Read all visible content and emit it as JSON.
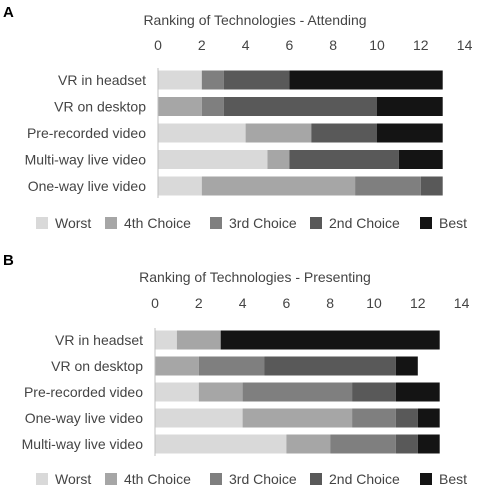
{
  "chart_data": [
    {
      "panel": "A",
      "type": "bar",
      "stacked": true,
      "orientation": "horizontal",
      "title": "Ranking of Technologies - Attending",
      "xlim": [
        0,
        14
      ],
      "xticks": [
        0,
        2,
        4,
        6,
        8,
        10,
        12,
        14
      ],
      "x_axis_position": "top",
      "grid": false,
      "legend_position": "bottom",
      "categories": [
        "VR in headset",
        "VR on desktop",
        "Pre-recorded video",
        "Multi-way live video",
        "One-way live video"
      ],
      "series": [
        {
          "name": "Worst",
          "color": "#d9d9d9",
          "values": [
            2,
            0,
            4,
            5,
            2
          ]
        },
        {
          "name": "4th Choice",
          "color": "#a6a6a6",
          "values": [
            0,
            2,
            3,
            1,
            7
          ]
        },
        {
          "name": "3rd Choice",
          "color": "#7f7f7f",
          "values": [
            1,
            1,
            0,
            0,
            3
          ]
        },
        {
          "name": "2nd Choice",
          "color": "#595959",
          "values": [
            3,
            7,
            3,
            5,
            1
          ]
        },
        {
          "name": "Best",
          "color": "#141414",
          "values": [
            7,
            3,
            3,
            2,
            0
          ]
        }
      ]
    },
    {
      "panel": "B",
      "type": "bar",
      "stacked": true,
      "orientation": "horizontal",
      "title": "Ranking of Technologies - Presenting",
      "xlim": [
        0,
        14
      ],
      "xticks": [
        0,
        2,
        4,
        6,
        8,
        10,
        12,
        14
      ],
      "x_axis_position": "top",
      "grid": false,
      "legend_position": "bottom",
      "categories": [
        "VR in headset",
        "VR on desktop",
        "Pre-recorded video",
        "One-way live video",
        "Multi-way live video"
      ],
      "series": [
        {
          "name": "Worst",
          "color": "#d9d9d9",
          "values": [
            1,
            0,
            2,
            4,
            6
          ]
        },
        {
          "name": "4th Choice",
          "color": "#a6a6a6",
          "values": [
            2,
            2,
            2,
            5,
            2
          ]
        },
        {
          "name": "3rd Choice",
          "color": "#7f7f7f",
          "values": [
            0,
            3,
            5,
            2,
            3
          ]
        },
        {
          "name": "2nd Choice",
          "color": "#595959",
          "values": [
            0,
            6,
            2,
            1,
            1
          ]
        },
        {
          "name": "Best",
          "color": "#141414",
          "values": [
            10,
            1,
            2,
            1,
            1
          ]
        }
      ]
    }
  ]
}
